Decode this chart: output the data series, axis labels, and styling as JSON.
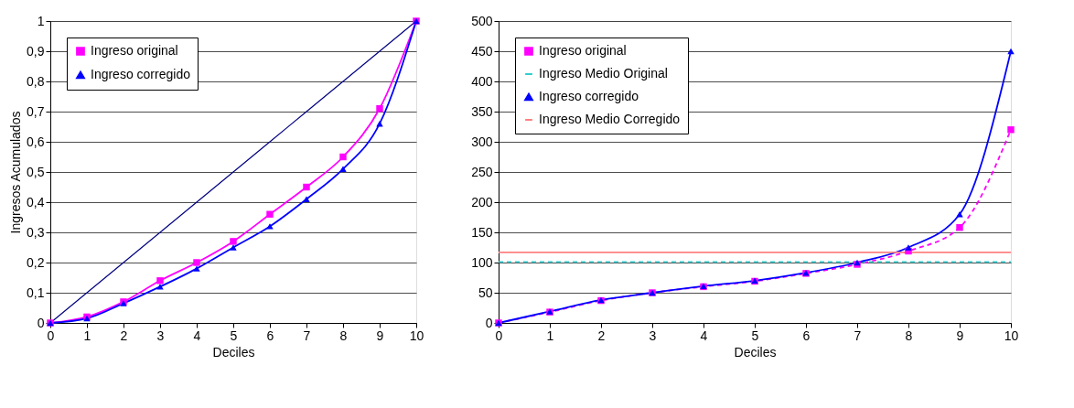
{
  "chart_data": [
    {
      "type": "line",
      "xlabel": "Deciles",
      "ylabel": "Ingresos Acumulados",
      "x": [
        0,
        1,
        2,
        3,
        4,
        5,
        6,
        7,
        8,
        9,
        10
      ],
      "xlim": [
        0,
        10
      ],
      "xticks": [
        0,
        1,
        2,
        3,
        4,
        5,
        6,
        7,
        8,
        9,
        10
      ],
      "ylim": [
        0,
        1
      ],
      "yticks": [
        0,
        {
          "value": 0.1,
          "label": "0,1"
        },
        {
          "value": 0.2,
          "label": "0,2"
        },
        {
          "value": 0.3,
          "label": "0,3"
        },
        {
          "value": 0.4,
          "label": "0,4"
        },
        {
          "value": 0.5,
          "label": "0,5"
        },
        {
          "value": 0.6,
          "label": "0,6"
        },
        {
          "value": 0.7,
          "label": "0,7"
        },
        {
          "value": 0.8,
          "label": "0,8"
        },
        {
          "value": 0.9,
          "label": "0,9"
        },
        1
      ],
      "grid": "y",
      "legend": "top left",
      "series": [
        {
          "name": "Ingreso original",
          "color": "#ff00ff",
          "marker": "square",
          "line_style": "solid",
          "values": [
            0,
            0.02,
            0.07,
            0.14,
            0.2,
            0.27,
            0.36,
            0.45,
            0.55,
            0.71,
            1
          ]
        },
        {
          "name": "Ingreso corregido",
          "color": "#0000ff",
          "marker": "triangle",
          "line_style": "solid",
          "values": [
            0,
            0.015,
            0.065,
            0.12,
            0.18,
            0.25,
            0.32,
            0.41,
            0.51,
            0.66,
            1
          ]
        },
        {
          "color": "#000080",
          "marker": "none",
          "line_style": "solid",
          "values": [
            0,
            0.1,
            0.2,
            0.3,
            0.4,
            0.5,
            0.6,
            0.7,
            0.8,
            0.9,
            1
          ]
        }
      ]
    },
    {
      "type": "line",
      "xlabel": "Deciles",
      "x": [
        0,
        1,
        2,
        3,
        4,
        5,
        6,
        7,
        8,
        9,
        10
      ],
      "xlim": [
        0,
        10
      ],
      "xticks": [
        0,
        1,
        2,
        3,
        4,
        5,
        6,
        7,
        8,
        9,
        10
      ],
      "ylim": [
        0,
        500
      ],
      "yticks": [
        0,
        50,
        100,
        150,
        200,
        250,
        300,
        350,
        400,
        450,
        500
      ],
      "grid": "y",
      "legend": "top left",
      "series": [
        {
          "name": "Ingreso original",
          "color": "#ff00ff",
          "marker": "square",
          "line_style": "dashed",
          "values": [
            0,
            18,
            37,
            50,
            60,
            69,
            82,
            97,
            119,
            158,
            320
          ]
        },
        {
          "name": "Ingreso Medio Original",
          "color": "#33cccc",
          "marker": "none",
          "line_style": "dashed",
          "values": [
            101,
            101,
            101,
            101,
            101,
            101,
            101,
            101,
            101,
            101,
            101
          ]
        },
        {
          "name": "Ingreso corregido",
          "color": "#0000ff",
          "marker": "triangle",
          "line_style": "solid",
          "values": [
            0,
            19,
            38,
            50,
            61,
            70,
            83,
            100,
            125,
            180,
            450
          ]
        },
        {
          "name": "Ingreso Medio Corregido",
          "color": "#ff8080",
          "marker": "none",
          "line_style": "solid",
          "values": [
            117,
            117,
            117,
            117,
            117,
            117,
            117,
            117,
            117,
            117,
            117
          ]
        }
      ]
    }
  ]
}
